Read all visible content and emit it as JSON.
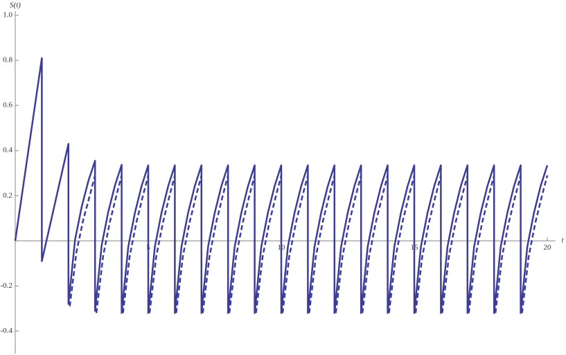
{
  "chart_data": {
    "type": "line",
    "y_label": "S(t)",
    "x_label": "t",
    "xlim": [
      0,
      20.3
    ],
    "ylim": [
      -0.5,
      1.0
    ],
    "xticks": [
      5,
      10,
      15,
      20
    ],
    "yticks": [
      -0.4,
      -0.2,
      0.2,
      0.4,
      0.6,
      0.8,
      {
        "value": 1.0,
        "label": "1.0"
      }
    ],
    "series": [
      {
        "color": "#3d3d99",
        "style": "solid",
        "x": [
          0,
          1,
          1,
          2,
          2,
          2.25,
          2.5,
          2.75,
          3,
          3,
          3.25,
          3.5,
          3.75,
          4,
          4,
          4.25,
          4.5,
          4.75,
          5,
          5,
          5.25,
          5.5,
          5.75,
          6,
          6,
          6.25,
          6.5,
          6.75,
          7,
          7,
          7.25,
          7.5,
          7.75,
          8,
          8,
          8.25,
          8.5,
          8.75,
          9,
          9,
          9.25,
          9.5,
          9.75,
          10,
          10,
          10.25,
          10.5,
          10.75,
          11,
          11,
          11.25,
          11.5,
          11.75,
          12,
          12,
          12.25,
          12.5,
          12.75,
          13,
          13,
          13.25,
          13.5,
          13.75,
          14,
          14,
          14.25,
          14.5,
          14.75,
          15,
          15,
          15.25,
          15.5,
          15.75,
          16,
          16,
          16.25,
          16.5,
          16.75,
          17,
          17,
          17.25,
          17.5,
          17.75,
          18,
          18,
          18.25,
          18.5,
          18.75,
          19,
          19,
          19.25,
          19.5,
          19.75,
          20
        ],
        "values": [
          0,
          0.81,
          -0.09,
          0.43,
          -0.28,
          0.006,
          0.152,
          0.266,
          0.355,
          -0.31,
          -0.019,
          0.13,
          0.246,
          0.337,
          -0.32,
          -0.025,
          0.125,
          0.243,
          0.335,
          -0.32,
          -0.025,
          0.125,
          0.243,
          0.335,
          -0.32,
          -0.025,
          0.125,
          0.243,
          0.335,
          -0.32,
          -0.025,
          0.125,
          0.243,
          0.335,
          -0.32,
          -0.025,
          0.125,
          0.243,
          0.335,
          -0.32,
          -0.025,
          0.125,
          0.243,
          0.335,
          -0.32,
          -0.025,
          0.125,
          0.243,
          0.335,
          -0.32,
          -0.025,
          0.125,
          0.243,
          0.335,
          -0.32,
          -0.025,
          0.125,
          0.243,
          0.335,
          -0.32,
          -0.025,
          0.125,
          0.243,
          0.335,
          -0.32,
          -0.025,
          0.125,
          0.243,
          0.335,
          -0.32,
          -0.025,
          0.125,
          0.243,
          0.335,
          -0.32,
          -0.025,
          0.125,
          0.243,
          0.335,
          -0.32,
          -0.025,
          0.125,
          0.243,
          0.335,
          -0.32,
          -0.025,
          0.125,
          0.243,
          0.335,
          -0.32,
          -0.025,
          0.125,
          0.243,
          0.335
        ]
      },
      {
        "color": "#3d3d99",
        "style": "dashed",
        "x": [
          2.05,
          2.3,
          2.55,
          2.8,
          3,
          3,
          3.05,
          3.3,
          3.55,
          3.8,
          4,
          4,
          4.05,
          4.3,
          4.55,
          4.8,
          5,
          5,
          5.05,
          5.3,
          5.55,
          5.8,
          6,
          6,
          6.05,
          6.3,
          6.55,
          6.8,
          7,
          7,
          7.05,
          7.3,
          7.55,
          7.8,
          8,
          8,
          8.05,
          8.3,
          8.55,
          8.8,
          9,
          9,
          9.05,
          9.3,
          9.55,
          9.8,
          10,
          10,
          10.05,
          10.3,
          10.55,
          10.8,
          11,
          11,
          11.05,
          11.3,
          11.55,
          11.8,
          12,
          12,
          12.05,
          12.3,
          12.55,
          12.8,
          13,
          13,
          13.05,
          13.3,
          13.55,
          13.8,
          14,
          14,
          14.05,
          14.3,
          14.55,
          14.8,
          15,
          15,
          15.05,
          15.3,
          15.55,
          15.8,
          16,
          16,
          16.05,
          16.3,
          16.55,
          16.8,
          17,
          17,
          17.05,
          17.3,
          17.55,
          17.8,
          18,
          18,
          18.05,
          18.3,
          18.55,
          18.8,
          19,
          19,
          19.05,
          19.3,
          19.55,
          19.8,
          20
        ],
        "values": [
          -0.29,
          -0.05,
          0.09,
          0.2,
          0.29,
          null,
          -0.32,
          -0.07,
          0.08,
          0.2,
          0.29,
          null,
          -0.32,
          -0.07,
          0.08,
          0.2,
          0.29,
          null,
          -0.32,
          -0.07,
          0.08,
          0.2,
          0.29,
          null,
          -0.32,
          -0.07,
          0.08,
          0.2,
          0.29,
          null,
          -0.32,
          -0.07,
          0.08,
          0.2,
          0.29,
          null,
          -0.32,
          -0.07,
          0.08,
          0.2,
          0.29,
          null,
          -0.32,
          -0.07,
          0.08,
          0.2,
          0.29,
          null,
          -0.32,
          -0.07,
          0.08,
          0.2,
          0.29,
          null,
          -0.32,
          -0.07,
          0.08,
          0.2,
          0.29,
          null,
          -0.32,
          -0.07,
          0.08,
          0.2,
          0.29,
          null,
          -0.32,
          -0.07,
          0.08,
          0.2,
          0.29,
          null,
          -0.32,
          -0.07,
          0.08,
          0.2,
          0.29,
          null,
          -0.32,
          -0.07,
          0.08,
          0.2,
          0.29,
          null,
          -0.32,
          -0.07,
          0.08,
          0.2,
          0.29,
          null,
          -0.32,
          -0.07,
          0.08,
          0.2,
          0.29,
          null,
          -0.32,
          -0.07,
          0.08,
          0.2,
          0.29,
          null,
          -0.32,
          -0.07,
          0.08,
          0.2,
          0.29
        ]
      }
    ]
  }
}
